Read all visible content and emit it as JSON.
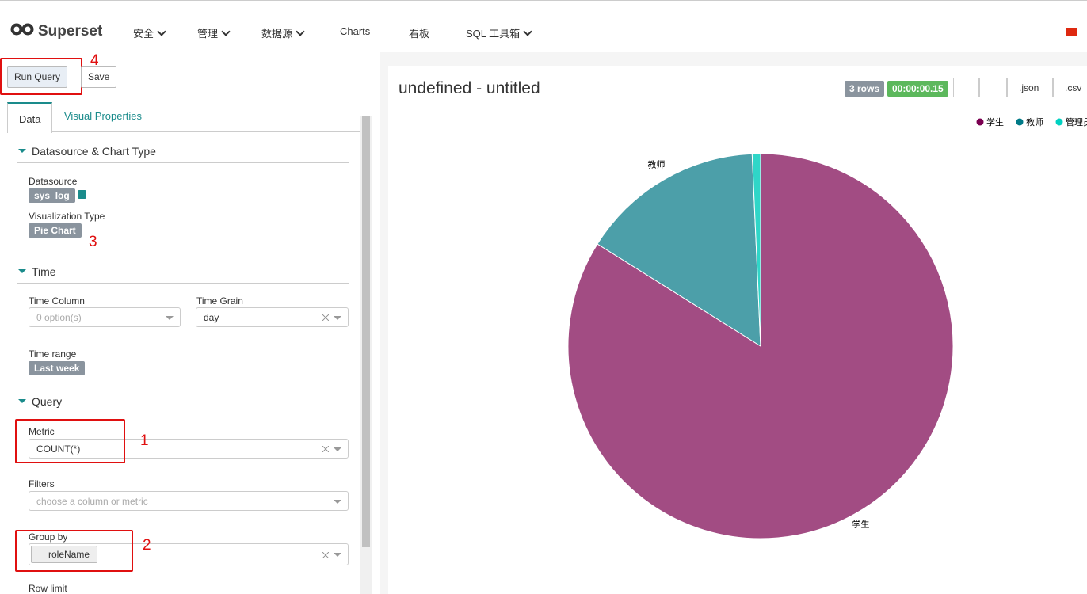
{
  "nav": {
    "brand": "Superset",
    "items": [
      "安全",
      "管理",
      "数据源",
      "Charts",
      "看板",
      "SQL 工具箱"
    ]
  },
  "toolbar": {
    "run": "Run Query",
    "save": "Save"
  },
  "annotations": {
    "run": "4",
    "viz": "3",
    "metric": "1",
    "groupby": "2"
  },
  "tabs": [
    "Data",
    "Visual Properties"
  ],
  "sections": {
    "datasource": "Datasource & Chart Type",
    "time": "Time",
    "query": "Query"
  },
  "fields": {
    "datasource": {
      "label": "Datasource",
      "value": "sys_log"
    },
    "viz_type": {
      "label": "Visualization Type",
      "value": "Pie Chart"
    },
    "time_column": {
      "label": "Time Column",
      "placeholder": "0 option(s)"
    },
    "time_grain": {
      "label": "Time Grain",
      "value": "day"
    },
    "time_range": {
      "label": "Time range",
      "value": "Last week"
    },
    "metric": {
      "label": "Metric",
      "value": "COUNT(*)"
    },
    "filters": {
      "label": "Filters",
      "placeholder": "choose a column or metric"
    },
    "groupby": {
      "label": "Group by",
      "value": "roleName"
    },
    "row_limit": {
      "label": "Row limit"
    }
  },
  "chart_panel": {
    "title": "undefined - untitled",
    "rows": "3 rows",
    "duration": "00:00:00.15",
    "json": ".json",
    "csv": ".csv"
  },
  "chart_data": {
    "type": "pie",
    "categories": [
      "学生",
      "教师",
      "管理员"
    ],
    "values": [
      83.9,
      15.4,
      0.7
    ],
    "colors": [
      "#a24c83",
      "#4c9fa9",
      "#2fd6c8"
    ],
    "legend_colors": [
      "#7b0051",
      "#007a87",
      "#00d1c1"
    ]
  }
}
